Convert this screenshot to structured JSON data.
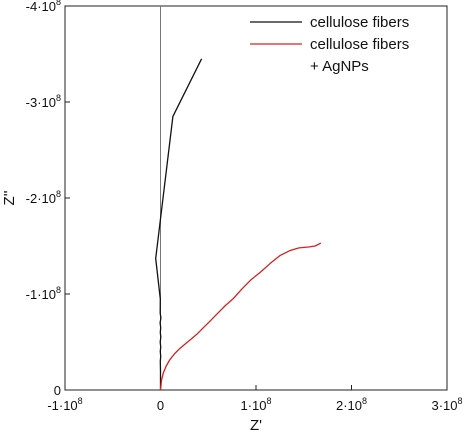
{
  "chart_data": {
    "type": "line",
    "xlabel": "Z'",
    "ylabel": "Z''",
    "x_axis": {
      "min": -100000000.0,
      "max": 300000000.0,
      "ticks": [
        {
          "value": -100000000.0,
          "mant": "-1",
          "exp": "8"
        },
        {
          "value": 0,
          "mant": "0",
          "exp": ""
        },
        {
          "value": 100000000.0,
          "mant": "1",
          "exp": "8"
        },
        {
          "value": 200000000.0,
          "mant": "2",
          "exp": "8"
        },
        {
          "value": 300000000.0,
          "mant": "3",
          "exp": "8"
        }
      ]
    },
    "y_axis": {
      "min": 0,
      "max": -400000000.0,
      "ticks": [
        {
          "value": 0,
          "mant": "0",
          "exp": ""
        },
        {
          "value": -100000000.0,
          "mant": "-1",
          "exp": "8"
        },
        {
          "value": -200000000.0,
          "mant": "-2",
          "exp": "8"
        },
        {
          "value": -300000000.0,
          "mant": "-3",
          "exp": "8"
        },
        {
          "value": -400000000.0,
          "mant": "-4",
          "exp": "8"
        }
      ]
    },
    "vline_at_x": 0,
    "legend": {
      "placement": "top-right",
      "entries": [
        {
          "lines": [
            "cellulose fibers"
          ],
          "color": "#111111"
        },
        {
          "lines": [
            "cellulose fibers",
            "+ AgNPs"
          ],
          "color": "#d62020"
        }
      ]
    },
    "series": [
      {
        "color": "#111111",
        "x": [
          0,
          0.0,
          0.0,
          -200000.0,
          200000.0,
          -200000.0,
          200000.0,
          -300000.0,
          300000.0,
          -200000.0,
          200000.0,
          -400000.0,
          400000.0,
          -300000.0,
          -200000.0,
          -5000000.0,
          13000000.0,
          43000000.0
        ],
        "y": [
          0,
          -10000000.0,
          -20000000.0,
          -30000000.0,
          -35000000.0,
          -40000000.0,
          -45000000.0,
          -50000000.0,
          -55000000.0,
          -60000000.0,
          -65000000.0,
          -70000000.0,
          -75000000.0,
          -80000000.0,
          -95000000.0,
          -137000000.0,
          -285000000.0,
          -345000000.0
        ]
      },
      {
        "color": "#d62020",
        "x": [
          0,
          1000000.0,
          3000000.0,
          6000000.0,
          10000000.0,
          15000000.0,
          20000000.0,
          26000000.0,
          32000000.0,
          38000000.0,
          45000000.0,
          52000000.0,
          60000000.0,
          68000000.0,
          76000000.0,
          85000000.0,
          95000000.0,
          105000000.0,
          115000000.0,
          125000000.0,
          135000000.0,
          145000000.0,
          155000000.0,
          162000000.0,
          168000000.0
        ],
        "y": [
          0,
          -10000000.0,
          -18000000.0,
          -25000000.0,
          -32000000.0,
          -38000000.0,
          -43000000.0,
          -48000000.0,
          -53000000.0,
          -58000000.0,
          -65000000.0,
          -72000000.0,
          -80000000.0,
          -88000000.0,
          -95000000.0,
          -105000000.0,
          -115000000.0,
          -123000000.0,
          -132000000.0,
          -140000000.0,
          -145000000.0,
          -148000000.0,
          -149000000.0,
          -150000000.0,
          -153000000.0
        ]
      }
    ]
  }
}
